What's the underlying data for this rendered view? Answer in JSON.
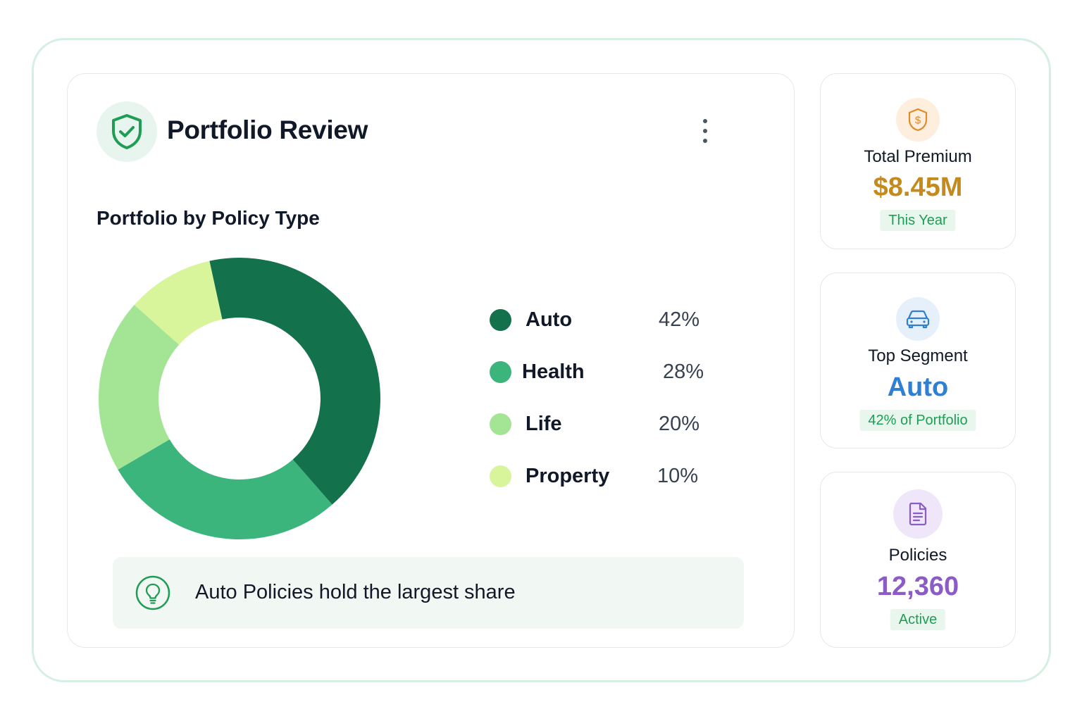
{
  "header": {
    "title": "Portfolio Review",
    "icon": "shield-check-icon",
    "menu_icon": "more-vertical-icon"
  },
  "chart_section": {
    "title": "Portfolio by Policy Type"
  },
  "chart_data": {
    "type": "pie",
    "categories": [
      "Auto",
      "Health",
      "Life",
      "Property"
    ],
    "values": [
      42,
      28,
      20,
      10
    ],
    "value_labels": [
      "42%",
      "28%",
      "20%",
      "10%"
    ],
    "colors": [
      "#13714b",
      "#3cb57d",
      "#a3e595",
      "#d9f59b"
    ],
    "donut": true,
    "legend": "right"
  },
  "insight": {
    "icon": "lightbulb-icon",
    "text": "Auto Policies hold the largest share"
  },
  "kpis": [
    {
      "label": "Total Premium",
      "value": "$8.45M",
      "badge": "This Year",
      "icon": "shield-dollar-icon",
      "value_color": "#c58a1c",
      "icon_bg": "#fdeede",
      "icon_color": "#e08a28"
    },
    {
      "label": "Top Segment",
      "value": "Auto",
      "badge": "42% of Portfolio",
      "icon": "car-icon",
      "value_color": "#2f7fd3",
      "icon_bg": "#e6f0fb",
      "icon_color": "#2f7fd3"
    },
    {
      "label": "Policies",
      "value": "12,360",
      "badge": "Active",
      "icon": "document-icon",
      "value_color": "#8b5cc6",
      "icon_bg": "#efe6fa",
      "icon_color": "#8b5cc6"
    }
  ]
}
